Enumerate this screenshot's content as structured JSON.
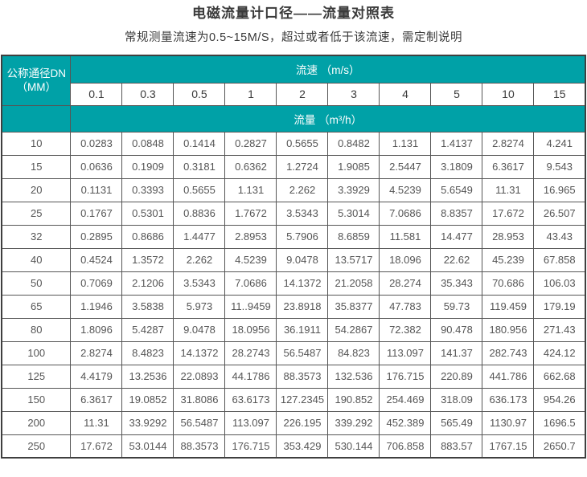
{
  "page": {
    "title": "电磁流量计口径——流量对照表",
    "subtitle": "常规测量流速为0.5~15M/S，超过或者低于该流速，需定制说明"
  },
  "colors": {
    "header_teal": "#00a1a7",
    "header_text": "#ffffff",
    "border": "#565656",
    "outer_border": "#3f3f3f",
    "data_text": "#555555",
    "title_text": "#3a3a3a"
  },
  "table": {
    "corner_header_line1": "公称通径DN",
    "corner_header_line2": "（MM）",
    "velocity_header": "流速 （m/s）",
    "flow_header": "流量 （m³/h）",
    "velocities": [
      "0.1",
      "0.3",
      "0.5",
      "1",
      "2",
      "3",
      "4",
      "5",
      "10",
      "15"
    ],
    "rows": [
      {
        "dn": "10",
        "values": [
          "0.0283",
          "0.0848",
          "0.1414",
          "0.2827",
          "0.5655",
          "0.8482",
          "1.131",
          "1.4137",
          "2.8274",
          "4.241"
        ]
      },
      {
        "dn": "15",
        "values": [
          "0.0636",
          "0.1909",
          "0.3181",
          "0.6362",
          "1.2724",
          "1.9085",
          "2.5447",
          "3.1809",
          "6.3617",
          "9.543"
        ]
      },
      {
        "dn": "20",
        "values": [
          "0.1131",
          "0.3393",
          "0.5655",
          "1.131",
          "2.262",
          "3.3929",
          "4.5239",
          "5.6549",
          "11.31",
          "16.965"
        ]
      },
      {
        "dn": "25",
        "values": [
          "0.1767",
          "0.5301",
          "0.8836",
          "1.7672",
          "3.5343",
          "5.3014",
          "7.0686",
          "8.8357",
          "17.672",
          "26.507"
        ]
      },
      {
        "dn": "32",
        "values": [
          "0.2895",
          "0.8686",
          "1.4477",
          "2.8953",
          "5.7906",
          "8.6859",
          "11.581",
          "14.477",
          "28.953",
          "43.43"
        ]
      },
      {
        "dn": "40",
        "values": [
          "0.4524",
          "1.3572",
          "2.262",
          "4.5239",
          "9.0478",
          "13.5717",
          "18.096",
          "22.62",
          "45.239",
          "67.858"
        ]
      },
      {
        "dn": "50",
        "values": [
          "0.7069",
          "2.1206",
          "3.5343",
          "7.0686",
          "14.1372",
          "21.2058",
          "28.274",
          "35.343",
          "70.686",
          "106.03"
        ]
      },
      {
        "dn": "65",
        "values": [
          "1.1946",
          "3.5838",
          "5.973",
          "11..9459",
          "23.8918",
          "35.8377",
          "47.783",
          "59.73",
          "119.459",
          "179.19"
        ]
      },
      {
        "dn": "80",
        "values": [
          "1.8096",
          "5.4287",
          "9.0478",
          "18.0956",
          "36.1911",
          "54.2867",
          "72.382",
          "90.478",
          "180.956",
          "271.43"
        ]
      },
      {
        "dn": "100",
        "values": [
          "2.8274",
          "8.4823",
          "14.1372",
          "28.2743",
          "56.5487",
          "84.823",
          "113.097",
          "141.37",
          "282.743",
          "424.12"
        ]
      },
      {
        "dn": "125",
        "values": [
          "4.4179",
          "13.2536",
          "22.0893",
          "44.1786",
          "88.3573",
          "132.536",
          "176.715",
          "220.89",
          "441.786",
          "662.68"
        ]
      },
      {
        "dn": "150",
        "values": [
          "6.3617",
          "19.0852",
          "31.8086",
          "63.6173",
          "127.2345",
          "190.852",
          "254.469",
          "318.09",
          "636.173",
          "954.26"
        ]
      },
      {
        "dn": "200",
        "values": [
          "11.31",
          "33.9292",
          "56.5487",
          "113.097",
          "226.195",
          "339.292",
          "452.389",
          "565.49",
          "1130.97",
          "1696.5"
        ]
      },
      {
        "dn": "250",
        "values": [
          "17.672",
          "53.0144",
          "88.3573",
          "176.715",
          "353.429",
          "530.144",
          "706.858",
          "883.57",
          "1767.15",
          "2650.7"
        ]
      }
    ]
  }
}
